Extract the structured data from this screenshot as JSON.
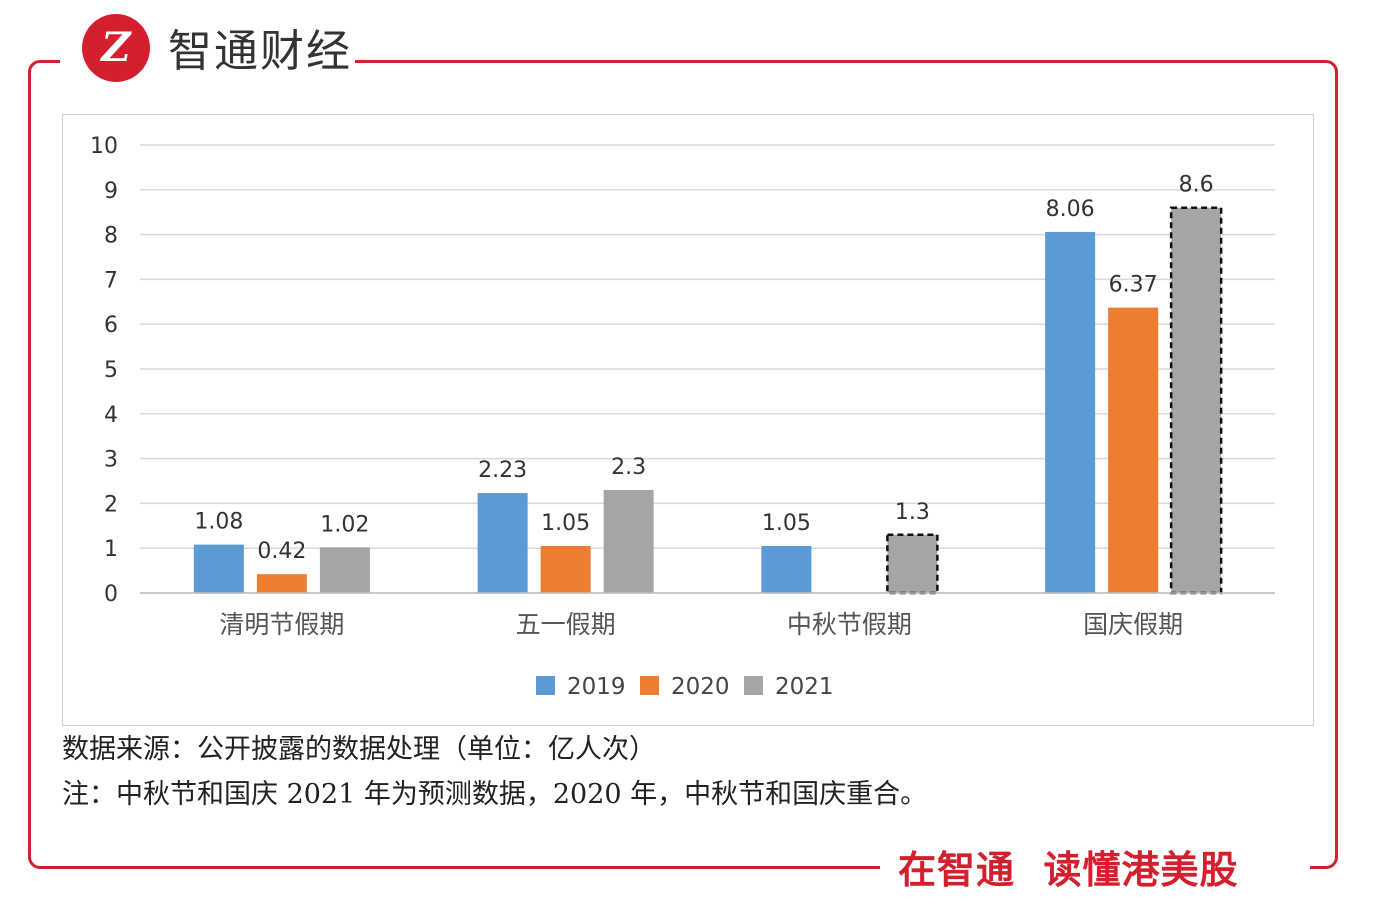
{
  "brand": {
    "logo_glyph": "Z",
    "name": "智通财经",
    "slogan": "在智通  读懂港美股",
    "color": "#d4202e"
  },
  "notes": {
    "source": "数据来源：公开披露的数据处理（单位：亿人次）",
    "remark": "注：中秋节和国庆 2021 年为预测数据，2020 年，中秋节和国庆重合。"
  },
  "chart_data": {
    "type": "bar",
    "title": "",
    "xlabel": "",
    "ylabel": "",
    "ylim": [
      0,
      10
    ],
    "yticks": [
      "0",
      "1",
      "2",
      "3",
      "4",
      "5",
      "6",
      "7",
      "8",
      "9",
      "10"
    ],
    "categories": [
      "清明节假期",
      "五一假期",
      "中秋节假期",
      "国庆假期"
    ],
    "legend_position": "bottom",
    "grid": true,
    "series": [
      {
        "name": "2019",
        "color": "#5b9bd5",
        "values": [
          1.08,
          2.23,
          1.05,
          8.06
        ],
        "labels": [
          "1.08",
          "2.23",
          "1.05",
          "8.06"
        ],
        "forecast": [
          false,
          false,
          false,
          false
        ]
      },
      {
        "name": "2020",
        "color": "#ed7d31",
        "values": [
          0.42,
          1.05,
          null,
          6.37
        ],
        "labels": [
          "0.42",
          "1.05",
          "",
          "6.37"
        ],
        "forecast": [
          false,
          false,
          false,
          false
        ]
      },
      {
        "name": "2021",
        "color": "#a5a5a5",
        "values": [
          1.02,
          2.3,
          1.3,
          8.6
        ],
        "labels": [
          "1.02",
          "2.3",
          "1.3",
          "8.6"
        ],
        "forecast": [
          false,
          false,
          true,
          true
        ]
      }
    ]
  }
}
